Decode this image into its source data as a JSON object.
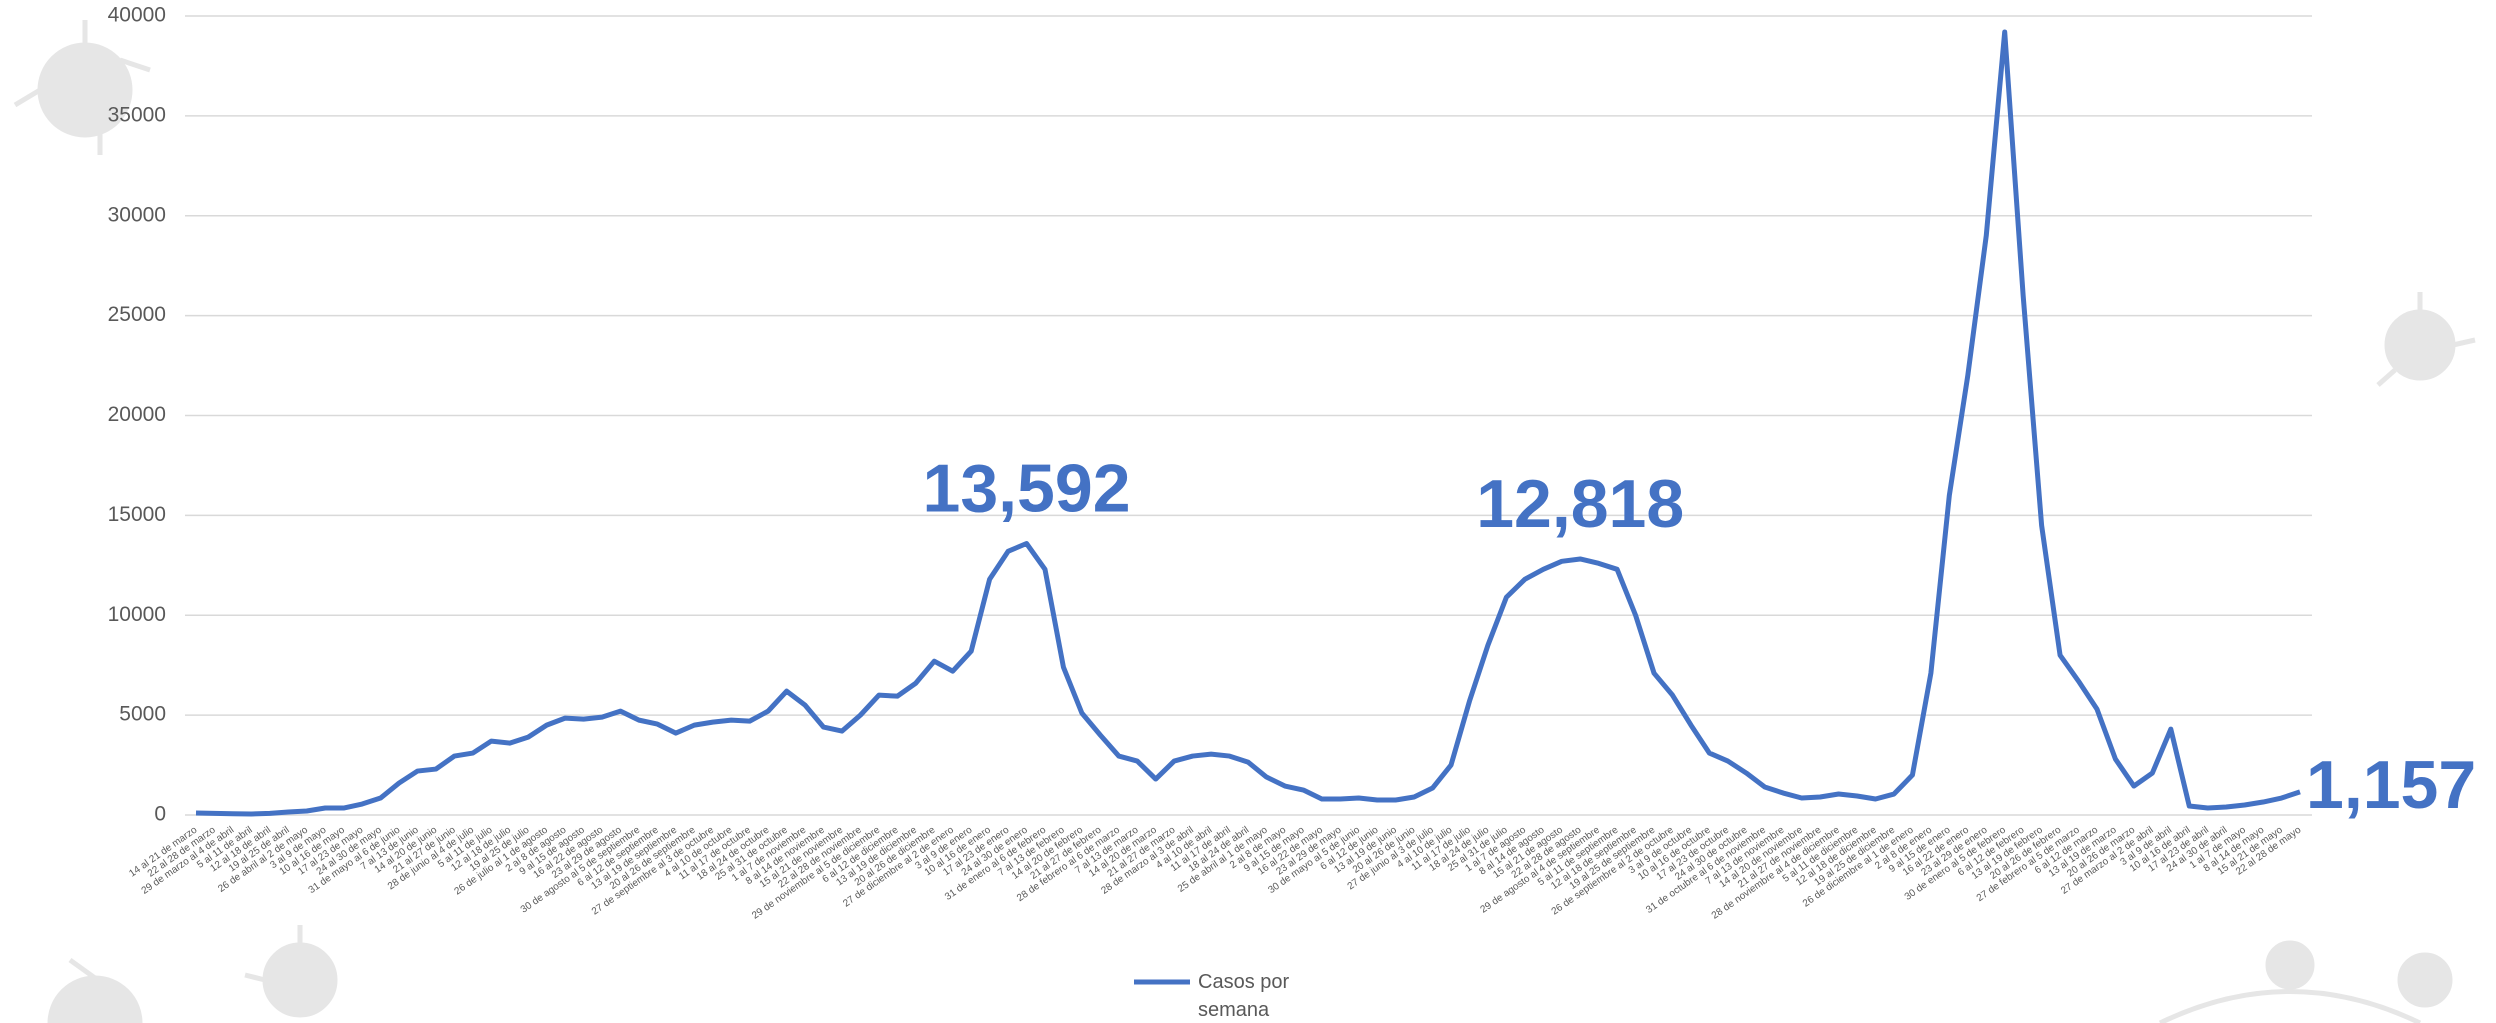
{
  "chart_data": {
    "type": "line",
    "categories": [
      "14 al 21 de marzo",
      "22 al 28 de marzo",
      "29 de marzo al 4 de abril",
      "5 al 11 de abril",
      "12 al 18 de abril",
      "19 al 25 de abril",
      "26 de abril al 2 de mayo",
      "3 al 9 de mayo",
      "10 al 16 de mayo",
      "17 al 23 de mayo",
      "24 al 30 de mayo",
      "31 de mayo al 6 de junio",
      "7 al 13 de junio",
      "14 al 20 de junio",
      "21 al 27 de junio",
      "28 de junio al 4 de julio",
      "5 al 11 de julio",
      "12 al 18 de julio",
      "19 al 25 de julio",
      "26 de julio al 1 de agosto",
      "2 al 8 de agosto",
      "9 al 15 de agosto",
      "16 al 22 de agosto",
      "23 al 29 de agosto",
      "30 de agosto al 5 de septiembre",
      "6 al 12 de septiembre",
      "13 al 19 de septiembre",
      "20 al 26 de septiembre",
      "27 de septiembre al 3 de octubre",
      "4 al 10 de octubre",
      "11 al 17 de octubre",
      "18 al 24 de octubre",
      "25 al 31 de octubre",
      "1 al 7 de noviembre",
      "8 al 14 de noviembre",
      "15 al 21 de noviembre",
      "22 al 28 de noviembre",
      "29 de noviembre al 5 de diciembre",
      "6 al 12 de diciembre",
      "13 al 19 de diciembre",
      "20 al 26 de diciembre",
      "27 de diciembre al 2 de enero",
      "3 al 9 de enero",
      "10 al 16 de enero",
      "17 al 23 de enero",
      "24 al 30 de enero",
      "31 de enero al 6 de febrero",
      "7 al 13 de febrero",
      "14 al 20 de febrero",
      "21 al 27 de febrero",
      "28 de febrero al 6 de marzo",
      "7 al 13 de marzo",
      "14 al 20 de marzo",
      "21 al 27 de marzo",
      "28 de marzo al 3 de abril",
      "4 al 10 de abril",
      "11 al 17 de abril",
      "18 al 24 de abril",
      "25 de abril al 1 de mayo",
      "2 al 8 de mayo",
      "9 al 15 de mayo",
      "16 al 22 de mayo",
      "23 al 29 de mayo",
      "30 de mayo al 5 de junio",
      "6 al 12 de junio",
      "13 al 19 de junio",
      "20 al 26 de junio",
      "27 de junio al 3 de julio",
      "4 al 10 de julio",
      "11 al 17 de julio",
      "18 al 24 de julio",
      "25 al 31 de julio",
      "1 al 7 de agosto",
      "8 al 14 de agosto",
      "15 al 21 de agosto",
      "22 al 28 de agosto",
      "29 de agosto al 4 de septiembre",
      "5 al 11 de septiembre",
      "12 al 18 de septiembre",
      "19 al 25 de septiembre",
      "26 de septiembre al 2 de octubre",
      "3 al 9 de octubre",
      "10 al 16 de octubre",
      "17 al 23 de octubre",
      "24 al 30 de octubre",
      "31 de octubre al 6 de noviembre",
      "7 al 13 de noviembre",
      "14 al 20 de noviembre",
      "21 al 27 de noviembre",
      "28 de noviembre al 4 de diciembre",
      "5 al 11 de diciembre",
      "12 al 18 de diciembre",
      "19 al 25 de diciembre",
      "26 de diciembre al 1 de enero",
      "2 al 8 de enero",
      "9 al 15 de enero",
      "16 al 22 de enero",
      "23 al 29 de enero",
      "30 de enero al 5 de febrero",
      "6 al 12 de febrero",
      "13 al 19 de febrero",
      "20 al 26 de febrero",
      "27 de febrero al 5 de marzo",
      "6 al 12 de marzo",
      "13 al 19 de marzo",
      "20 al 26 de marzo",
      "27 de marzo al 2 de abril",
      "3 al 9 de abril",
      "10 al 16 de abril",
      "17 al 23 de abril",
      "24 al 30 de abril",
      "1 al 7 de mayo",
      "8 al 14 de mayo",
      "15 al 21 de mayo",
      "22 al 28 de mayo"
    ],
    "series": [
      {
        "name": "Casos por semana",
        "color": "#4472c4",
        "values": [
          100,
          80,
          60,
          50,
          80,
          150,
          200,
          350,
          350,
          550,
          850,
          1600,
          2200,
          2300,
          2950,
          3100,
          3700,
          3600,
          3900,
          4500,
          4850,
          4800,
          4900,
          5200,
          4750,
          4550,
          4100,
          4500,
          4650,
          4750,
          4700,
          5200,
          6200,
          5500,
          4400,
          4200,
          5000,
          6000,
          5950,
          6600,
          7700,
          7200,
          8200,
          11800,
          13200,
          13592,
          12300,
          7400,
          5100,
          4000,
          2950,
          2700,
          1800,
          2700,
          2950,
          3050,
          2950,
          2650,
          1900,
          1450,
          1250,
          800,
          800,
          850,
          750,
          750,
          900,
          1350,
          2500,
          5700,
          8500,
          10900,
          11800,
          12300,
          12700,
          12818,
          12600,
          12300,
          10000,
          7100,
          6000,
          4500,
          3100,
          2700,
          2100,
          1400,
          1100,
          850,
          900,
          1050,
          950,
          800,
          1050,
          2000,
          7100,
          16000,
          22000,
          29000,
          39200,
          26000,
          14500,
          8000,
          6700,
          5300,
          2800,
          1450,
          2100,
          4300,
          450,
          350,
          400,
          500,
          650,
          850,
          1157
        ],
        "value_labels": [
          null,
          null,
          null,
          null,
          null,
          null,
          null,
          null,
          null,
          null,
          null,
          null,
          null,
          null,
          null,
          null,
          null,
          null,
          null,
          null,
          null,
          null,
          null,
          null,
          null,
          null,
          null,
          null,
          null,
          null,
          null,
          null,
          null,
          null,
          null,
          null,
          null,
          null,
          null,
          null,
          null,
          null,
          null,
          null,
          null,
          "13,592",
          null,
          null,
          null,
          null,
          null,
          null,
          null,
          null,
          null,
          null,
          null,
          null,
          null,
          null,
          null,
          null,
          null,
          null,
          null,
          null,
          null,
          null,
          null,
          null,
          null,
          null,
          null,
          null,
          null,
          "12,818",
          null,
          null,
          null,
          null,
          null,
          null,
          null,
          null,
          null,
          null,
          null,
          null,
          null,
          null,
          null,
          null,
          null,
          null,
          null,
          null,
          null,
          null,
          null,
          null,
          null,
          null,
          null,
          null,
          null,
          null,
          null,
          null,
          null,
          null,
          null,
          null,
          null,
          null,
          "1,157"
        ]
      }
    ],
    "ylim": [
      0,
      40000
    ],
    "yticks": [
      0,
      5000,
      10000,
      15000,
      20000,
      25000,
      30000,
      35000,
      40000
    ],
    "grid": true,
    "legend": "bottom"
  }
}
